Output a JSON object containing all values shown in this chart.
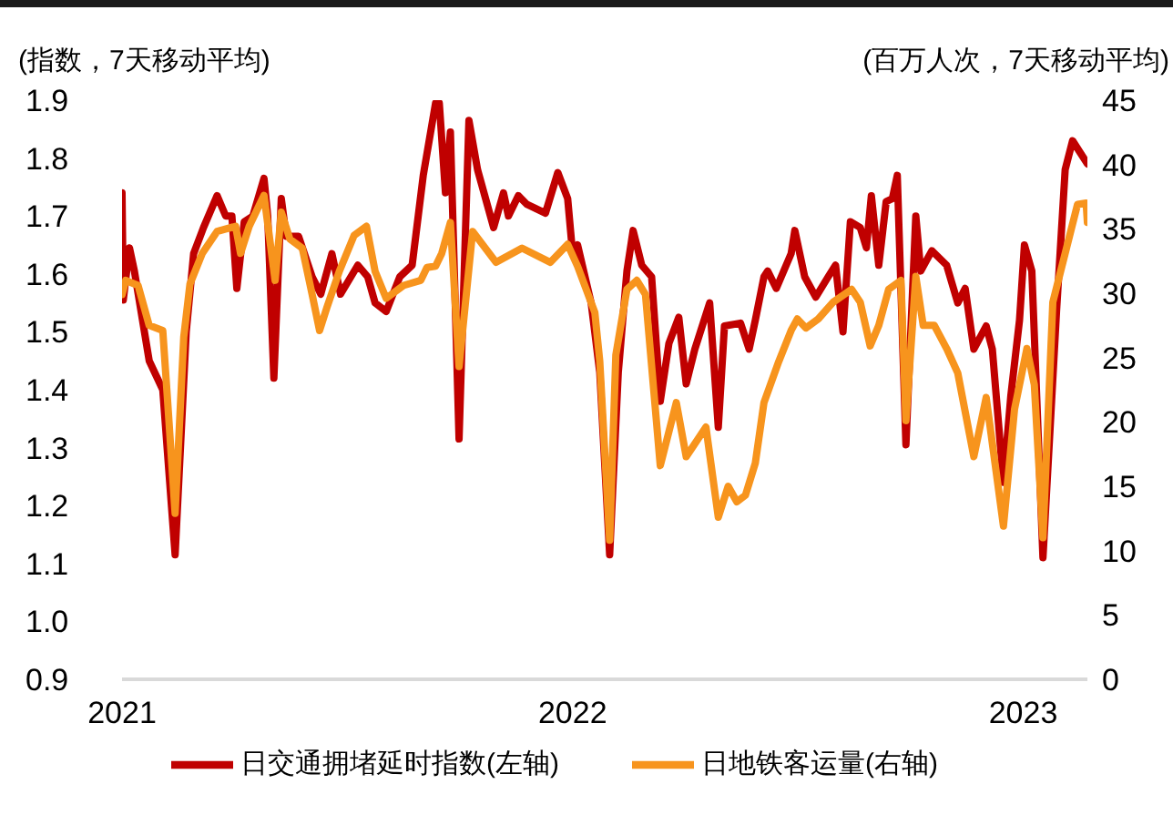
{
  "chart_data": {
    "type": "line",
    "ylabel": "(指数，7天移动平均)",
    "y2label": "(百万人次，7天移动平均)",
    "xlim": [
      "2021-01-01",
      "2023-02-22"
    ],
    "xticks": [
      {
        "value": "2021-01-01",
        "label": "2021"
      },
      {
        "value": "2022-01-01",
        "label": "2022"
      },
      {
        "value": "2023-01-01",
        "label": "2023"
      }
    ],
    "ylim": [
      0.9,
      1.9
    ],
    "yticks": [
      0.9,
      {
        "value": 1.0,
        "label": "1.0"
      },
      1.1,
      1.2,
      1.3,
      1.4,
      1.5,
      1.6,
      1.7,
      1.8,
      1.9
    ],
    "y2lim": [
      0,
      45
    ],
    "y2ticks": [
      0,
      5,
      10,
      15,
      20,
      25,
      30,
      35,
      40,
      45
    ],
    "legend": "bottom",
    "marker": "none",
    "series": [
      {
        "name": "日交通拥堵延时指数(左轴)",
        "color": "#c00000",
        "axis": "y",
        "x": [
          "2021-01-01",
          "2021-01-02",
          "2021-01-07",
          "2021-01-11",
          "2021-01-23",
          "2021-02-03",
          "2021-02-13",
          "2021-02-22",
          "2021-02-28",
          "2021-03-08",
          "2021-03-19",
          "2021-03-26",
          "2021-03-31",
          "2021-04-04",
          "2021-04-10",
          "2021-04-17",
          "2021-04-26",
          "2021-04-29",
          "2021-05-04",
          "2021-05-10",
          "2021-05-14",
          "2021-05-24",
          "2021-06-04",
          "2021-06-11",
          "2021-06-20",
          "2021-06-27",
          "2021-07-11",
          "2021-07-19",
          "2021-07-25",
          "2021-08-03",
          "2021-08-14",
          "2021-08-24",
          "2021-09-02",
          "2021-09-12",
          "2021-09-15",
          "2021-09-20",
          "2021-09-24",
          "2021-10-01",
          "2021-10-09",
          "2021-10-16",
          "2021-10-29",
          "2021-11-06",
          "2021-11-10",
          "2021-11-18",
          "2021-11-25",
          "2021-12-10",
          "2021-12-20",
          "2021-12-28",
          "2022-01-01",
          "2022-01-05",
          "2022-01-16",
          "2022-01-23",
          "2022-01-31",
          "2022-02-07",
          "2022-02-14",
          "2022-02-19",
          "2022-02-26",
          "2022-03-06",
          "2022-03-13",
          "2022-03-20",
          "2022-03-28",
          "2022-04-03",
          "2022-04-10",
          "2022-04-22",
          "2022-04-29",
          "2022-05-04",
          "2022-05-17",
          "2022-05-24",
          "2022-05-29",
          "2022-06-05",
          "2022-06-08",
          "2022-06-15",
          "2022-06-27",
          "2022-06-30",
          "2022-07-08",
          "2022-07-17",
          "2022-07-27",
          "2022-08-02",
          "2022-08-08",
          "2022-08-14",
          "2022-08-22",
          "2022-08-27",
          "2022-08-31",
          "2022-09-06",
          "2022-09-12",
          "2022-09-17",
          "2022-09-21",
          "2022-09-28",
          "2022-10-06",
          "2022-10-10",
          "2022-10-19",
          "2022-10-31",
          "2022-11-09",
          "2022-11-15",
          "2022-11-22",
          "2022-12-02",
          "2022-12-07",
          "2022-12-16",
          "2022-12-22",
          "2022-12-29",
          "2023-01-02",
          "2023-01-08",
          "2023-01-17",
          "2023-01-28",
          "2023-02-04",
          "2023-02-10",
          "2023-02-16",
          "2023-02-22"
        ],
        "values": [
          1.74,
          1.555,
          1.645,
          1.605,
          1.45,
          1.4,
          1.115,
          1.5,
          1.635,
          1.68,
          1.735,
          1.7,
          1.7,
          1.575,
          1.69,
          1.7,
          1.765,
          1.7,
          1.42,
          1.73,
          1.665,
          1.665,
          1.595,
          1.565,
          1.635,
          1.565,
          1.615,
          1.595,
          1.55,
          1.535,
          1.595,
          1.615,
          1.77,
          1.895,
          1.895,
          1.74,
          1.845,
          1.315,
          1.865,
          1.78,
          1.68,
          1.74,
          1.7,
          1.735,
          1.72,
          1.705,
          1.775,
          1.73,
          1.635,
          1.65,
          1.55,
          1.43,
          1.115,
          1.43,
          1.605,
          1.675,
          1.615,
          1.595,
          1.38,
          1.48,
          1.525,
          1.41,
          1.47,
          1.55,
          1.335,
          1.51,
          1.515,
          1.47,
          1.52,
          1.595,
          1.605,
          1.575,
          1.635,
          1.675,
          1.595,
          1.56,
          1.595,
          1.615,
          1.5,
          1.69,
          1.68,
          1.645,
          1.735,
          1.615,
          1.725,
          1.73,
          1.77,
          1.305,
          1.7,
          1.605,
          1.64,
          1.615,
          1.55,
          1.575,
          1.47,
          1.51,
          1.47,
          1.24,
          1.39,
          1.52,
          1.65,
          1.605,
          1.11,
          1.535,
          1.78,
          1.83,
          1.81,
          1.79
        ]
      },
      {
        "name": "日地铁客运量(右轴)",
        "color": "#f7941d",
        "axis": "y2",
        "x": [
          "2021-01-01",
          "2021-01-04",
          "2021-01-14",
          "2021-01-23",
          "2021-02-03",
          "2021-02-07",
          "2021-02-13",
          "2021-02-20",
          "2021-02-25",
          "2021-03-07",
          "2021-03-19",
          "2021-04-03",
          "2021-04-07",
          "2021-04-14",
          "2021-04-26",
          "2021-05-05",
          "2021-05-10",
          "2021-05-17",
          "2021-05-27",
          "2021-06-04",
          "2021-06-10",
          "2021-06-16",
          "2021-06-26",
          "2021-07-08",
          "2021-07-18",
          "2021-07-25",
          "2021-08-03",
          "2021-08-17",
          "2021-08-31",
          "2021-09-05",
          "2021-09-12",
          "2021-09-17",
          "2021-09-24",
          "2021-10-01",
          "2021-10-12",
          "2021-10-31",
          "2021-11-21",
          "2021-12-14",
          "2021-12-28",
          "2022-01-05",
          "2022-01-19",
          "2022-01-23",
          "2022-01-31",
          "2022-02-05",
          "2022-02-14",
          "2022-02-22",
          "2022-03-01",
          "2022-03-13",
          "2022-03-26",
          "2022-04-03",
          "2022-04-19",
          "2022-04-29",
          "2022-05-07",
          "2022-05-14",
          "2022-05-21",
          "2022-05-29",
          "2022-06-05",
          "2022-06-17",
          "2022-06-27",
          "2022-07-02",
          "2022-07-09",
          "2022-07-19",
          "2022-07-31",
          "2022-08-15",
          "2022-08-22",
          "2022-08-30",
          "2022-09-06",
          "2022-09-14",
          "2022-09-24",
          "2022-09-28",
          "2022-10-06",
          "2022-10-12",
          "2022-10-21",
          "2022-10-31",
          "2022-11-09",
          "2022-11-22",
          "2022-12-02",
          "2022-12-16",
          "2022-12-25",
          "2023-01-04",
          "2023-01-10",
          "2023-01-17",
          "2023-01-25",
          "2023-02-04",
          "2023-02-14",
          "2023-02-21",
          "2023-02-22"
        ],
        "values": [
          29.9,
          31.0,
          30.6,
          27.5,
          27.1,
          21.5,
          12.9,
          26.6,
          30.7,
          33.1,
          34.8,
          35.2,
          33.1,
          35.2,
          37.6,
          31.0,
          36.3,
          34.2,
          33.5,
          29.9,
          27.1,
          28.9,
          31.7,
          34.5,
          35.2,
          31.7,
          29.6,
          30.6,
          31.0,
          32.0,
          32.1,
          33.1,
          35.5,
          24.3,
          34.8,
          32.4,
          33.5,
          32.4,
          33.8,
          32.1,
          28.5,
          24.7,
          10.8,
          25.2,
          30.3,
          31.0,
          29.9,
          16.6,
          21.5,
          17.3,
          19.6,
          12.6,
          15.0,
          13.8,
          14.3,
          16.8,
          21.5,
          24.7,
          27.1,
          28.0,
          27.3,
          28.0,
          29.3,
          30.3,
          29.3,
          25.9,
          27.5,
          30.3,
          31.0,
          20.1,
          31.3,
          27.5,
          27.5,
          25.7,
          23.8,
          17.3,
          21.9,
          11.9,
          21.0,
          25.7,
          22.9,
          11.0,
          29.3,
          33.1,
          36.9,
          37.0,
          35.5
        ]
      }
    ]
  }
}
